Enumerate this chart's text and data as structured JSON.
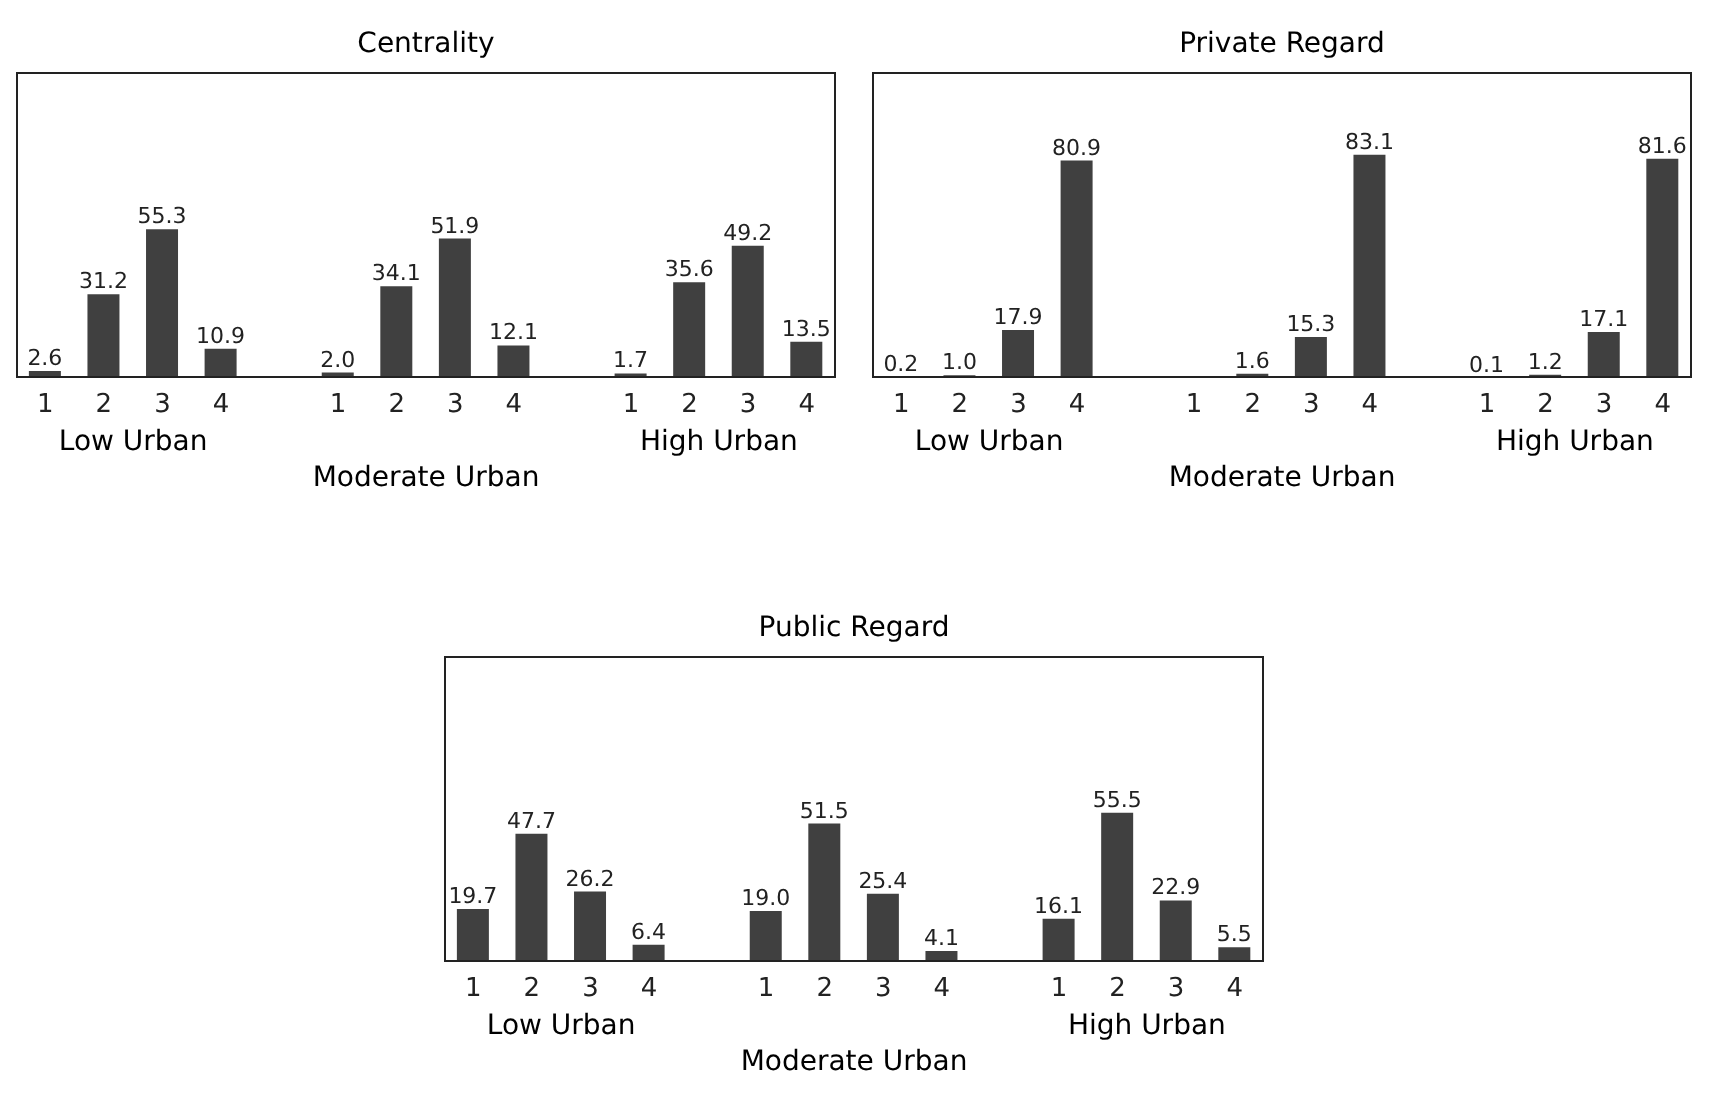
{
  "chart_data": [
    {
      "type": "bar",
      "title": "Centrality",
      "categories": [
        "1",
        "2",
        "3",
        "4",
        null,
        "1",
        "2",
        "3",
        "4",
        null,
        "1",
        "2",
        "3",
        "4"
      ],
      "values": [
        2.6,
        31.2,
        55.3,
        10.9,
        null,
        2.0,
        34.1,
        51.9,
        12.1,
        null,
        1.7,
        35.6,
        49.2,
        13.5
      ],
      "value_labels": [
        "2.6",
        "31.2",
        "55.3",
        "10.9",
        null,
        "2.0",
        "34.1",
        "51.9",
        "12.1",
        null,
        "1.7",
        "35.6",
        "49.2",
        "13.5"
      ],
      "color": "#404040",
      "annotations": [
        "Low Urban",
        "Moderate Urban",
        "High Urban"
      ]
    },
    {
      "type": "bar",
      "title": "Private Regard",
      "categories": [
        "1",
        "2",
        "3",
        "4",
        null,
        "1",
        "2",
        "3",
        "4",
        null,
        "1",
        "2",
        "3",
        "4"
      ],
      "values": [
        0.2,
        1.0,
        17.9,
        80.9,
        null,
        null,
        1.6,
        15.3,
        83.1,
        null,
        0.1,
        1.2,
        17.1,
        81.6
      ],
      "value_labels": [
        "0.2",
        "1.0",
        "17.9",
        "80.9",
        null,
        null,
        "1.6",
        "15.3",
        "83.1",
        null,
        "0.1",
        "1.2",
        "17.1",
        "81.6"
      ],
      "color": "#404040",
      "annotations": [
        "Low Urban",
        "Moderate Urban",
        "High Urban"
      ]
    },
    {
      "type": "bar",
      "title": "Public Regard",
      "categories": [
        "1",
        "2",
        "3",
        "4",
        null,
        "1",
        "2",
        "3",
        "4",
        null,
        "1",
        "2",
        "3",
        "4"
      ],
      "values": [
        19.7,
        47.7,
        26.2,
        6.4,
        null,
        19.0,
        51.5,
        25.4,
        4.1,
        null,
        16.1,
        55.5,
        22.9,
        5.5
      ],
      "value_labels": [
        "19.7",
        "47.7",
        "26.2",
        "6.4",
        null,
        "19.0",
        "51.5",
        "25.4",
        "4.1",
        null,
        "16.1",
        "55.5",
        "22.9",
        "5.5"
      ],
      "color": "#404040",
      "annotations": [
        "Low Urban",
        "Moderate Urban",
        "High Urban"
      ]
    }
  ]
}
